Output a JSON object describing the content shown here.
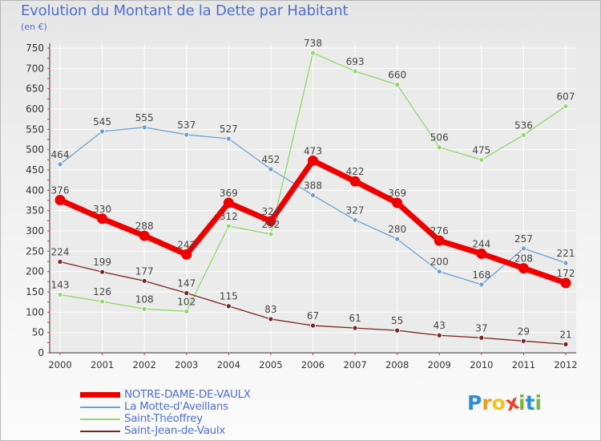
{
  "header": {
    "title": "Evolution du Montant de la Dette par Habitant",
    "subtitle": "(en €)"
  },
  "brand": {
    "logo_letters": [
      "P",
      "r",
      "o",
      "x",
      "i",
      "t",
      "i"
    ],
    "logo_colors": [
      "#2a8fd8",
      "#f29b1f",
      "#f2c21f",
      "#e8432f",
      "#7ab83a",
      "#2a8fd8",
      "#7ab83a"
    ]
  },
  "colors": {
    "axis_text": "#333333",
    "grid": "#ffffff",
    "tick_red": "#e03030"
  },
  "chart_data": {
    "type": "line",
    "x": [
      "2000",
      "2001",
      "2002",
      "2003",
      "2004",
      "2005",
      "2006",
      "2007",
      "2008",
      "2009",
      "2010",
      "2011",
      "2012"
    ],
    "ylim": [
      0,
      750
    ],
    "yticks": [
      0,
      50,
      100,
      150,
      200,
      250,
      300,
      350,
      400,
      450,
      500,
      550,
      600,
      650,
      700,
      750
    ],
    "grid": true,
    "legend_position": "bottom-left",
    "series": [
      {
        "name": "NOTRE-DAME-DE-VAULX",
        "color": "#ee0000",
        "values": [
          376,
          330,
          288,
          242,
          369,
          324,
          473,
          422,
          369,
          276,
          244,
          208,
          172
        ],
        "value_labels": [
          "376",
          "330",
          "288",
          "242",
          "369",
          "324",
          "473",
          "422",
          "369",
          "276",
          "244",
          "208",
          "172"
        ]
      },
      {
        "name": "La Motte-d'Aveillans",
        "color": "#6ea0d2",
        "values": [
          464,
          545,
          555,
          537,
          527,
          452,
          388,
          327,
          280,
          200,
          168,
          257,
          221
        ],
        "value_labels": [
          "464",
          "545",
          "555",
          "537",
          "527",
          "452",
          "388",
          "327",
          "280",
          "200",
          "168",
          "257",
          "221"
        ]
      },
      {
        "name": "Saint-Théoffrey",
        "color": "#92d86a",
        "values": [
          143,
          126,
          108,
          102,
          312,
          292,
          738,
          693,
          660,
          506,
          475,
          536,
          607
        ],
        "value_labels": [
          "143",
          "126",
          "108",
          "102",
          "312",
          "292",
          "738",
          "693",
          "660",
          "506",
          "475",
          "536",
          "607"
        ]
      },
      {
        "name": "Saint-Jean-de-Vaulx",
        "color": "#7a2424",
        "values": [
          224,
          199,
          177,
          147,
          115,
          83,
          67,
          61,
          55,
          43,
          37,
          29,
          21
        ],
        "value_labels": [
          "224",
          "199",
          "177",
          "147",
          "115",
          "83",
          "67",
          "61",
          "55",
          "43",
          "37",
          "29",
          "21"
        ]
      }
    ]
  }
}
